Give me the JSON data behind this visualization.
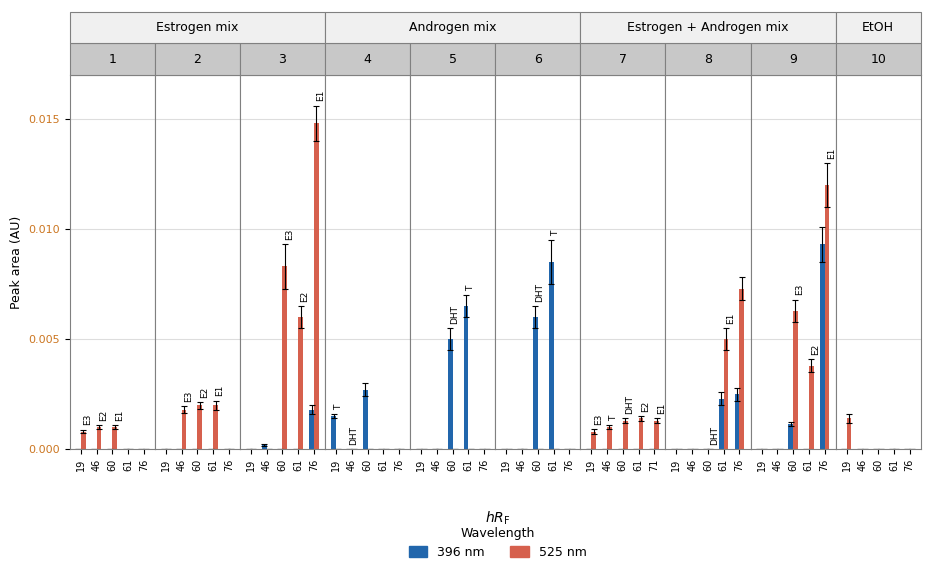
{
  "panel_groups": [
    {
      "label": "Estrogen mix",
      "panels": [
        1,
        2,
        3
      ]
    },
    {
      "label": "Androgen mix",
      "panels": [
        4,
        5,
        6
      ]
    },
    {
      "label": "Estrogen + Androgen mix",
      "panels": [
        7,
        8,
        9
      ]
    },
    {
      "label": "EtOH",
      "panels": [
        10
      ]
    }
  ],
  "panels": {
    "1": {
      "hrf_labels": [
        "19",
        "46",
        "60",
        "61",
        "76"
      ],
      "blue": [
        0.0,
        0.0,
        0.0,
        0.0,
        0.0
      ],
      "red": [
        0.0008,
        0.001,
        0.001,
        0.0,
        0.0
      ],
      "blue_err": [
        0.0,
        0.0,
        0.0,
        0.0,
        0.0
      ],
      "red_err": [
        8e-05,
        0.0001,
        0.0001,
        0.0,
        0.0
      ],
      "bar_labels_blue": [
        "",
        "",
        "",
        "",
        ""
      ],
      "bar_labels_red": [
        "E3",
        "E2",
        "E1",
        "",
        ""
      ]
    },
    "2": {
      "hrf_labels": [
        "19",
        "46",
        "60",
        "61",
        "76"
      ],
      "blue": [
        0.0,
        0.0,
        0.0,
        0.0,
        0.0
      ],
      "red": [
        0.0,
        0.0018,
        0.002,
        0.002,
        0.0
      ],
      "blue_err": [
        0.0,
        0.0,
        0.0,
        0.0,
        0.0
      ],
      "red_err": [
        0.0,
        0.00015,
        0.00015,
        0.0002,
        0.0
      ],
      "bar_labels_blue": [
        "",
        "",
        "",
        "",
        ""
      ],
      "bar_labels_red": [
        "",
        "E3",
        "E2",
        "E1",
        ""
      ]
    },
    "3": {
      "hrf_labels": [
        "19",
        "46",
        "60",
        "61",
        "76"
      ],
      "blue": [
        0.0,
        0.0002,
        0.0,
        0.0,
        0.0018
      ],
      "red": [
        0.0,
        0.0,
        0.0083,
        0.006,
        0.0148
      ],
      "blue_err": [
        0.0,
        3e-05,
        0.0,
        0.0,
        0.0002
      ],
      "red_err": [
        0.0,
        0.0,
        0.001,
        0.0005,
        0.0008
      ],
      "bar_labels_blue": [
        "",
        "",
        "",
        "",
        ""
      ],
      "bar_labels_red": [
        "",
        "",
        "E3",
        "E2",
        "E1"
      ]
    },
    "4": {
      "hrf_labels": [
        "19",
        "46",
        "60",
        "61",
        "76"
      ],
      "blue": [
        0.0015,
        0.0,
        0.0027,
        0.0,
        0.0
      ],
      "red": [
        0.0,
        0.0,
        0.0,
        0.0,
        0.0
      ],
      "blue_err": [
        0.0001,
        0.0,
        0.0003,
        0.0,
        0.0
      ],
      "red_err": [
        0.0,
        0.0,
        0.0,
        0.0,
        0.0
      ],
      "bar_labels_blue": [
        "T",
        "DHT",
        "",
        "",
        ""
      ],
      "bar_labels_red": [
        "",
        "",
        "",
        "",
        ""
      ]
    },
    "5": {
      "hrf_labels": [
        "19",
        "46",
        "60",
        "61",
        "76"
      ],
      "blue": [
        0.0,
        0.0,
        0.005,
        0.0065,
        0.0
      ],
      "red": [
        0.0,
        0.0,
        0.0,
        0.0,
        0.0
      ],
      "blue_err": [
        0.0,
        0.0,
        0.0005,
        0.0005,
        0.0
      ],
      "red_err": [
        0.0,
        0.0,
        0.0,
        0.0,
        0.0
      ],
      "bar_labels_blue": [
        "",
        "",
        "DHT",
        "T",
        ""
      ],
      "bar_labels_red": [
        "",
        "",
        "",
        "",
        ""
      ]
    },
    "6": {
      "hrf_labels": [
        "19",
        "46",
        "60",
        "61",
        "76"
      ],
      "blue": [
        0.0,
        0.0,
        0.006,
        0.0085,
        0.0
      ],
      "red": [
        0.0,
        0.0,
        0.0,
        0.0,
        0.0
      ],
      "blue_err": [
        0.0,
        0.0,
        0.0005,
        0.001,
        0.0
      ],
      "red_err": [
        0.0,
        0.0,
        0.0,
        0.0,
        0.0
      ],
      "bar_labels_blue": [
        "",
        "",
        "DHT",
        "T",
        ""
      ],
      "bar_labels_red": [
        "",
        "",
        "",
        "",
        ""
      ]
    },
    "7": {
      "hrf_labels": [
        "19",
        "46",
        "60",
        "61",
        "71"
      ],
      "blue": [
        0.0,
        0.0,
        0.0,
        0.0,
        0.0
      ],
      "red": [
        0.0008,
        0.001,
        0.0013,
        0.0014,
        0.0013
      ],
      "blue_err": [
        0.0,
        0.0,
        0.0,
        0.0,
        0.0
      ],
      "red_err": [
        0.0001,
        0.0001,
        0.0001,
        0.0001,
        0.0001
      ],
      "bar_labels_blue": [
        "",
        "",
        "",
        "",
        ""
      ],
      "bar_labels_red": [
        "E3",
        "T",
        "DHT",
        "E2",
        "E1"
      ]
    },
    "8": {
      "hrf_labels": [
        "19",
        "46",
        "60",
        "61",
        "76"
      ],
      "blue": [
        0.0,
        0.0,
        0.0,
        0.0023,
        0.0025
      ],
      "red": [
        0.0,
        0.0,
        0.0,
        0.005,
        0.0073
      ],
      "blue_err": [
        0.0,
        0.0,
        0.0,
        0.0003,
        0.0003
      ],
      "red_err": [
        0.0,
        0.0,
        0.0,
        0.0005,
        0.0005
      ],
      "bar_labels_blue": [
        "",
        "",
        "",
        "",
        ""
      ],
      "bar_labels_red": [
        "",
        "",
        "DHT",
        "E1",
        ""
      ]
    },
    "9": {
      "hrf_labels": [
        "19",
        "46",
        "60",
        "61",
        "76"
      ],
      "blue": [
        0.0,
        0.0,
        0.00115,
        0.0,
        0.0093
      ],
      "red": [
        0.0,
        0.0,
        0.0063,
        0.0038,
        0.012
      ],
      "blue_err": [
        0.0,
        0.0,
        0.0001,
        0.0,
        0.0008
      ],
      "red_err": [
        0.0,
        0.0,
        0.0005,
        0.0003,
        0.001
      ],
      "bar_labels_blue": [
        "",
        "",
        "",
        "",
        ""
      ],
      "bar_labels_red": [
        "",
        "",
        "E3",
        "E2",
        "E1"
      ]
    },
    "10": {
      "hrf_labels": [
        "19",
        "46",
        "60",
        "61",
        "76"
      ],
      "blue": [
        0.0,
        0.0,
        0.0,
        0.0,
        0.0
      ],
      "red": [
        0.0014,
        0.0,
        0.0,
        0.0,
        0.0
      ],
      "blue_err": [
        0.0,
        0.0,
        0.0,
        0.0,
        0.0
      ],
      "red_err": [
        0.0002,
        0.0,
        0.0,
        0.0,
        0.0
      ],
      "bar_labels_blue": [
        "",
        "",
        "",
        "",
        ""
      ],
      "bar_labels_red": [
        "",
        "",
        "",
        "",
        ""
      ]
    }
  },
  "ylabel": "Peak area (AU)",
  "xlabel": "hR_F",
  "ylim": [
    0,
    0.017
  ],
  "yticks": [
    0.0,
    0.005,
    0.01,
    0.015
  ],
  "blue_color": "#2166AC",
  "red_color": "#D6604D",
  "bar_width": 0.35,
  "legend_label_blue": "396 nm",
  "legend_label_red": "525 nm",
  "legend_title": "Wavelength",
  "bg_color": "#FFFFFF",
  "panel_header_bg": "#CCCCCC",
  "group_header_bg": "#EEEEEE",
  "grid_color": "#DDDDDD"
}
